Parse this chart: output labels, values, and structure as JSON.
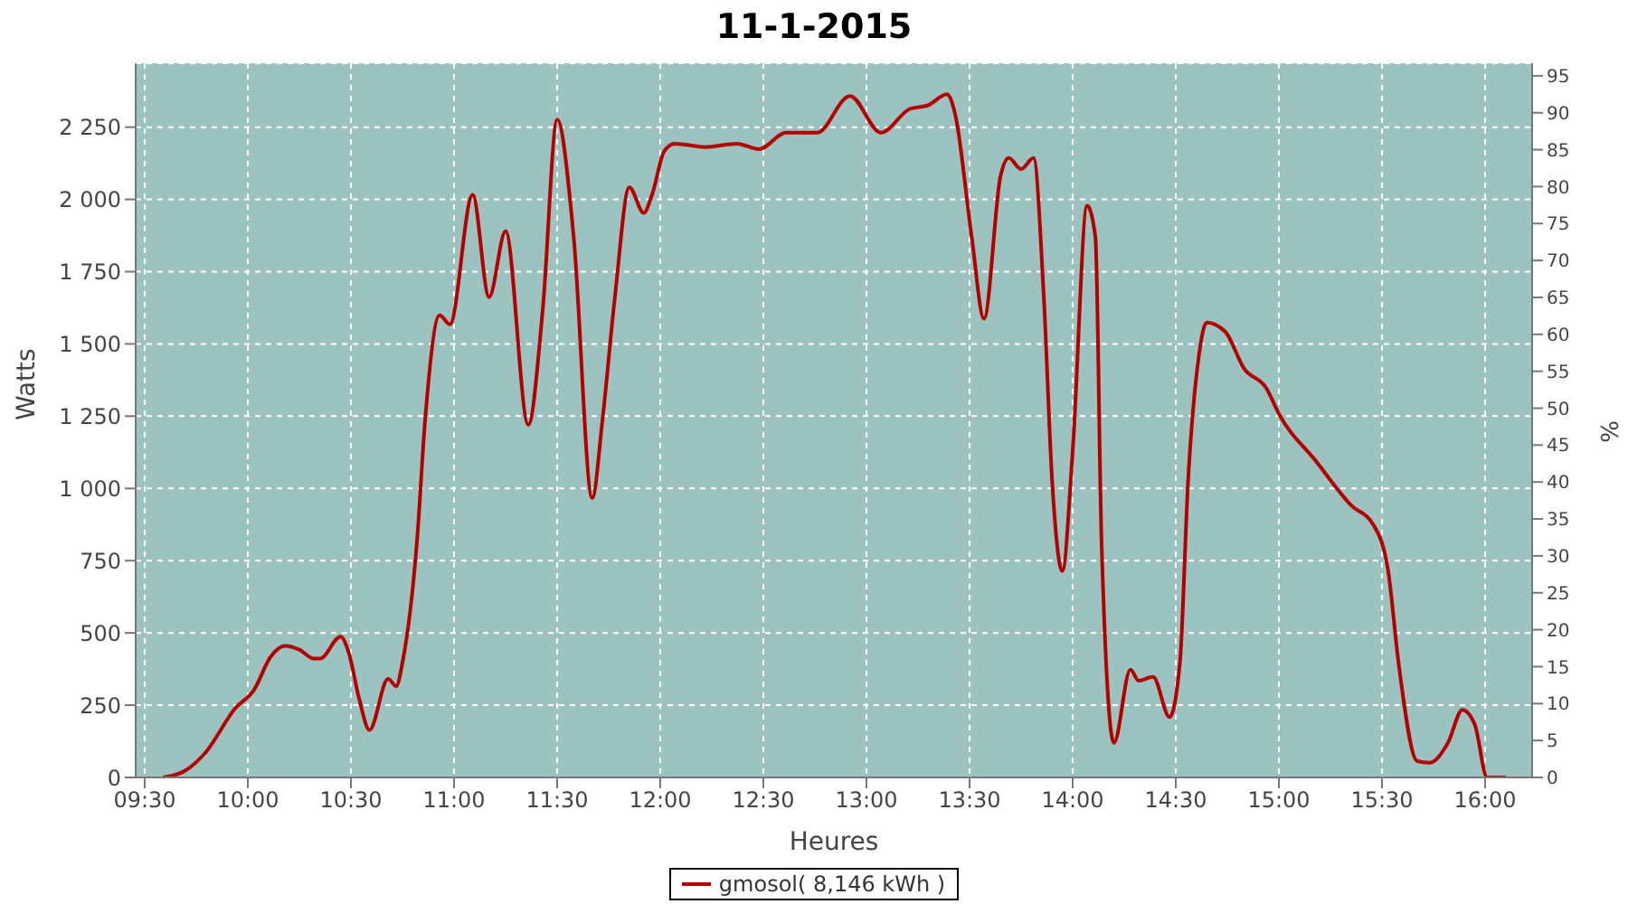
{
  "chart_data": {
    "type": "line",
    "title": "11-1-2015",
    "xlabel": "Heures",
    "ylabel": "Watts",
    "y2label": "%",
    "x": [
      9.59,
      9.7,
      9.79,
      9.94,
      10.03,
      10.11,
      10.18,
      10.25,
      10.32,
      10.35,
      10.45,
      10.49,
      10.54,
      10.59,
      10.68,
      10.72,
      10.75,
      10.82,
      10.86,
      10.93,
      10.98,
      11.09,
      11.17,
      11.25,
      11.36,
      11.43,
      11.5,
      11.58,
      11.67,
      11.72,
      11.78,
      11.85,
      11.92,
      11.96,
      12.02,
      12.07,
      12.22,
      12.37,
      12.48,
      12.61,
      12.76,
      12.92,
      13.07,
      13.21,
      13.3,
      13.39,
      13.43,
      13.51,
      13.57,
      13.65,
      13.69,
      13.75,
      13.81,
      13.86,
      13.9,
      13.95,
      14.0,
      14.07,
      14.11,
      14.14,
      14.2,
      14.28,
      14.32,
      14.39,
      14.47,
      14.52,
      14.56,
      14.61,
      14.65,
      14.74,
      14.83,
      14.94,
      15.0,
      15.18,
      15.35,
      15.46,
      15.53,
      15.58,
      15.67,
      15.73,
      15.82,
      15.89,
      15.95,
      16.01,
      16.1
    ],
    "series": [
      {
        "name": "gmosol( 8,146 kWh )",
        "color": "#b30000",
        "values": [
          0,
          25,
          82,
          240,
          303,
          417,
          455,
          442,
          411,
          411,
          487,
          430,
          272,
          164,
          341,
          316,
          398,
          815,
          1239,
          1599,
          1568,
          2016,
          1662,
          1890,
          1220,
          1618,
          2276,
          1871,
          967,
          1239,
          1662,
          2042,
          1953,
          2016,
          2168,
          2193,
          2181,
          2193,
          2174,
          2231,
          2231,
          2358,
          2231,
          2313,
          2326,
          2364,
          2295,
          1871,
          1587,
          2080,
          2143,
          2105,
          2143,
          1662,
          1030,
          714,
          1131,
          1978,
          1871,
          815,
          120,
          373,
          335,
          348,
          209,
          398,
          1030,
          1448,
          1574,
          1542,
          1416,
          1346,
          1258,
          1094,
          942,
          872,
          714,
          398,
          57,
          51,
          120,
          234,
          183,
          0,
          0
        ]
      }
    ],
    "xlim": [
      9.456,
      16.228
    ],
    "xticks": [
      {
        "value": 9.5,
        "label": "09:30"
      },
      {
        "value": 10,
        "label": "10:00"
      },
      {
        "value": 10.5,
        "label": "10:30"
      },
      {
        "value": 11,
        "label": "11:00"
      },
      {
        "value": 11.5,
        "label": "11:30"
      },
      {
        "value": 12,
        "label": "12:00"
      },
      {
        "value": 12.5,
        "label": "12:30"
      },
      {
        "value": 13,
        "label": "13:00"
      },
      {
        "value": 13.5,
        "label": "13:30"
      },
      {
        "value": 14,
        "label": "14:00"
      },
      {
        "value": 14.5,
        "label": "14:30"
      },
      {
        "value": 15,
        "label": "15:00"
      },
      {
        "value": 15.5,
        "label": "15:30"
      },
      {
        "value": 16,
        "label": "16:00"
      }
    ],
    "ylim": [
      0,
      2471
    ],
    "yticks": [
      0,
      250,
      500,
      750,
      {
        "value": 1000,
        "label": "1 000"
      },
      {
        "value": 1250,
        "label": "1 250"
      },
      {
        "value": 1500,
        "label": "1 500"
      },
      {
        "value": 1750,
        "label": "1 750"
      },
      {
        "value": 2000,
        "label": "2 000"
      },
      {
        "value": 2250,
        "label": "2 250"
      }
    ],
    "y2lim": [
      0,
      96.7
    ],
    "y2ticks": [
      0,
      5,
      10,
      15,
      20,
      25,
      30,
      35,
      40,
      45,
      50,
      55,
      60,
      65,
      70,
      75,
      80,
      85,
      90,
      95
    ],
    "grid": true,
    "legend": "bottom",
    "marker": "none",
    "line_style": "solid"
  }
}
